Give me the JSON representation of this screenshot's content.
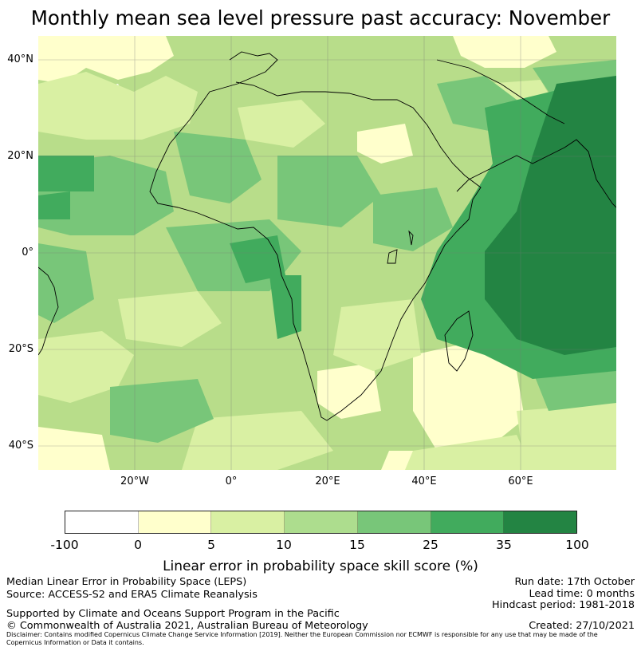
{
  "title": "Monthly mean sea level pressure past accuracy: November",
  "map": {
    "region": "Africa",
    "lat_labels": [
      "40°N",
      "20°N",
      "0°",
      "20°S",
      "40°S"
    ],
    "lon_labels": [
      "20°W",
      "0°",
      "20°E",
      "40°E",
      "60°E"
    ]
  },
  "colorbar": {
    "title": "Linear error in probability space skill score (%)",
    "ticks": [
      "-100",
      "0",
      "5",
      "10",
      "15",
      "25",
      "35",
      "100"
    ],
    "colors": [
      "#ffffff",
      "#ffffcc",
      "#d9f0a3",
      "#addd8e",
      "#78c679",
      "#41ab5d",
      "#238443"
    ]
  },
  "footer": {
    "line1": "Median Linear Error in Probability Space (LEPS)",
    "line2": "Source: ACCESS-S2 and ERA5 Climate Reanalysis",
    "run_date": "Run date: 17th October",
    "lead_time": "Lead time: 0 months",
    "hindcast": "Hindcast period: 1981-2018",
    "support": "Supported by Climate and Oceans Support Program in the Pacific",
    "copyright": "© Commonwealth of Australia 2021, Australian Bureau of Meteorology",
    "created": "Created: 27/10/2021",
    "disclaimer": "Disclaimer: Contains modified Copernicus Climate Change Service Information [2019]. Neither the European Commission nor ECMWF is responsible for any use that may be made of the Copernicus Information or Data it contains."
  }
}
